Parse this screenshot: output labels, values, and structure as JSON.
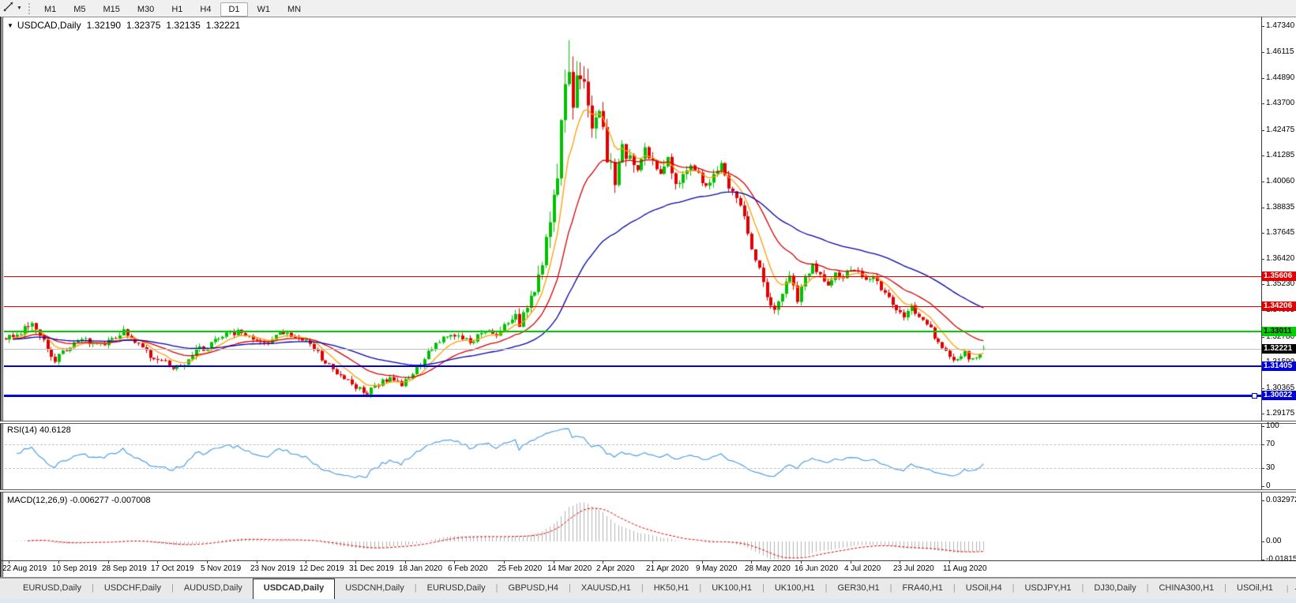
{
  "toolbar": {
    "tool_icon": "trendline-tool",
    "dropdown_icon": "▼",
    "timeframes": [
      {
        "label": "M1",
        "active": false
      },
      {
        "label": "M5",
        "active": false
      },
      {
        "label": "M15",
        "active": false
      },
      {
        "label": "M30",
        "active": false
      },
      {
        "label": "H1",
        "active": false
      },
      {
        "label": "H4",
        "active": false
      },
      {
        "label": "D1",
        "active": true
      },
      {
        "label": "W1",
        "active": false
      },
      {
        "label": "MN",
        "active": false
      }
    ]
  },
  "chart": {
    "title": {
      "expander_icon": "▼",
      "symbol_period": "USDCAD,Daily",
      "open": "1.32190",
      "high": "1.32375",
      "low": "1.32135",
      "close": "1.32221"
    },
    "colors": {
      "bull": "#00c000",
      "bear": "#e00000",
      "background": "#ffffff",
      "axis_text": "#000000",
      "current_price_line": "#c0c0c0"
    },
    "moving_averages": [
      {
        "period": 8,
        "color": "#ff9c00"
      },
      {
        "period": 21,
        "color": "#d40000"
      },
      {
        "period": 55,
        "color": "#0000a8"
      }
    ],
    "levels": [
      {
        "price": 1.35606,
        "label": "1.35606",
        "color": "#e00000",
        "text_color": "#ffffff",
        "thickness": 1
      },
      {
        "price": 1.34206,
        "label": "1.34206",
        "color": "#e00000",
        "text_color": "#ffffff",
        "thickness": 1
      },
      {
        "price": 1.33011,
        "label": "1.33011",
        "color": "#00d000",
        "text_color": "#000000",
        "thickness": 2
      },
      {
        "price": 1.31405,
        "label": "1.31405",
        "color": "#0000d8",
        "text_color": "#ffffff",
        "thickness": 2
      },
      {
        "price": 1.30022,
        "label": "1.30022",
        "color": "#0000d8",
        "text_color": "#ffffff",
        "thickness": 3,
        "handle": true
      }
    ],
    "current_price": {
      "value": 1.32221,
      "label": "1.32221",
      "badge_bg": "#000000",
      "text_color": "#ffffff"
    }
  },
  "rsi": {
    "label": "RSI(14) 40.6128",
    "period": 14,
    "value": 40.6128,
    "axis_labels": [
      "100",
      "70",
      "30",
      "0"
    ],
    "axis_values": [
      100,
      70,
      30,
      0
    ],
    "dashed_levels": [
      70,
      30
    ],
    "line_color": "#4c9ee8"
  },
  "macd": {
    "label": "MACD(12,26,9) -0.006277 -0.007008",
    "fast": 12,
    "slow": 26,
    "signal": 9,
    "main_value": "-0.006277",
    "signal_value": "-0.007008",
    "axis_labels": [
      "0.032972",
      "0.00",
      "-0.018154"
    ],
    "axis_values": [
      0.032972,
      0,
      -0.018154
    ],
    "hist_color": "#b2b2b2",
    "signal_color": "#e00000"
  },
  "tabs": {
    "items": [
      "EURUSD,Daily",
      "USDCHF,Daily",
      "AUDUSD,Daily",
      "USDCAD,Daily",
      "USDCNH,Daily",
      "EURUSD,Daily",
      "GBPUSD,H4",
      "XAUUSD,H1",
      "HK50,H1",
      "UK100,H1",
      "UK100,H1",
      "GER30,H1",
      "FRA40,H1",
      "USOil,H4",
      "USDJPY,H1",
      "DJ30,Daily",
      "CHINA300,H1",
      "USOil,H1"
    ],
    "active_index": 3,
    "scroll_left_icon": "◂",
    "scroll_right_icon": "▸"
  },
  "chart_data": {
    "type": "candlestick",
    "symbol": "USDCAD",
    "timeframe": "Daily",
    "title": "USDCAD,Daily",
    "bars_total": 258,
    "ylim": [
      1.29175,
      1.4734
    ],
    "y_ticks": [
      "1.47340",
      "1.46115",
      "1.44890",
      "1.43700",
      "1.42475",
      "1.41285",
      "1.40060",
      "1.38835",
      "1.37645",
      "1.36420",
      "1.35230",
      "1.34005",
      "1.32780",
      "1.31590",
      "1.30365",
      "1.29175"
    ],
    "x_labels": [
      "22 Aug 2019",
      "10 Sep 2019",
      "28 Sep 2019",
      "17 Oct 2019",
      "5 Nov 2019",
      "23 Nov 2019",
      "12 Dec 2019",
      "31 Dec 2019",
      "18 Jan 2020",
      "6 Feb 2020",
      "25 Feb 2020",
      "14 Mar 2020",
      "2 Apr 2020",
      "21 Apr 2020",
      "9 May 2020",
      "28 May 2020",
      "16 Jun 2020",
      "4 Jul 2020",
      "23 Jul 2020",
      "11 Aug 2020"
    ],
    "x_label_bar_interval": 13,
    "x_label_first_bar": 1,
    "last_candle": {
      "open": 1.3219,
      "high": 1.32375,
      "low": 1.32135,
      "close": 1.32221
    },
    "close_anchors": [
      [
        0,
        1.327,
        0.0035
      ],
      [
        4,
        1.33,
        0.0035
      ],
      [
        7,
        1.334,
        0.004
      ],
      [
        10,
        1.3255,
        0.004
      ],
      [
        13,
        1.317,
        0.0035
      ],
      [
        16,
        1.3215,
        0.003
      ],
      [
        20,
        1.327,
        0.003
      ],
      [
        24,
        1.3235,
        0.003
      ],
      [
        27,
        1.325,
        0.003
      ],
      [
        31,
        1.3305,
        0.0035
      ],
      [
        35,
        1.324,
        0.003
      ],
      [
        39,
        1.317,
        0.0035
      ],
      [
        43,
        1.3145,
        0.0035
      ],
      [
        46,
        1.3135,
        0.003
      ],
      [
        50,
        1.3215,
        0.0035
      ],
      [
        53,
        1.323,
        0.003
      ],
      [
        57,
        1.329,
        0.003
      ],
      [
        61,
        1.33,
        0.0028
      ],
      [
        64,
        1.327,
        0.0028
      ],
      [
        68,
        1.3245,
        0.0028
      ],
      [
        72,
        1.3295,
        0.0028
      ],
      [
        76,
        1.328,
        0.0025
      ],
      [
        79,
        1.3255,
        0.0025
      ],
      [
        83,
        1.318,
        0.003
      ],
      [
        86,
        1.313,
        0.003
      ],
      [
        89,
        1.308,
        0.003
      ],
      [
        92,
        1.3045,
        0.0032
      ],
      [
        95,
        1.301,
        0.0032
      ],
      [
        98,
        1.306,
        0.003
      ],
      [
        101,
        1.3085,
        0.0028
      ],
      [
        104,
        1.305,
        0.0028
      ],
      [
        107,
        1.3105,
        0.0028
      ],
      [
        110,
        1.318,
        0.003
      ],
      [
        113,
        1.3245,
        0.003
      ],
      [
        116,
        1.328,
        0.0028
      ],
      [
        119,
        1.329,
        0.0028
      ],
      [
        122,
        1.325,
        0.0028
      ],
      [
        125,
        1.33,
        0.0028
      ],
      [
        127,
        1.332,
        0.003
      ],
      [
        129,
        1.328,
        0.0035
      ],
      [
        131,
        1.333,
        0.0045
      ],
      [
        133,
        1.338,
        0.005
      ],
      [
        135,
        1.3345,
        0.0055
      ],
      [
        137,
        1.34,
        0.006
      ],
      [
        139,
        1.35,
        0.007
      ],
      [
        141,
        1.362,
        0.009
      ],
      [
        143,
        1.379,
        0.011
      ],
      [
        145,
        1.405,
        0.013
      ],
      [
        147,
        1.448,
        0.015
      ],
      [
        148,
        1.452,
        0.016
      ],
      [
        149,
        1.44,
        0.014
      ],
      [
        150,
        1.453,
        0.013
      ],
      [
        152,
        1.442,
        0.012
      ],
      [
        154,
        1.428,
        0.011
      ],
      [
        156,
        1.438,
        0.01
      ],
      [
        158,
        1.41,
        0.009
      ],
      [
        160,
        1.402,
        0.008
      ],
      [
        162,
        1.415,
        0.0075
      ],
      [
        164,
        1.413,
        0.007
      ],
      [
        166,
        1.408,
        0.0065
      ],
      [
        168,
        1.417,
        0.006
      ],
      [
        170,
        1.409,
        0.006
      ],
      [
        172,
        1.402,
        0.006
      ],
      [
        174,
        1.41,
        0.0055
      ],
      [
        176,
        1.399,
        0.0055
      ],
      [
        178,
        1.404,
        0.005
      ],
      [
        180,
        1.408,
        0.005
      ],
      [
        182,
        1.403,
        0.005
      ],
      [
        184,
        1.398,
        0.005
      ],
      [
        186,
        1.405,
        0.005
      ],
      [
        188,
        1.41,
        0.0048
      ],
      [
        190,
        1.398,
        0.0048
      ],
      [
        192,
        1.393,
        0.0045
      ],
      [
        194,
        1.383,
        0.0045
      ],
      [
        196,
        1.37,
        0.0045
      ],
      [
        198,
        1.36,
        0.0045
      ],
      [
        200,
        1.348,
        0.0045
      ],
      [
        202,
        1.339,
        0.0045
      ],
      [
        204,
        1.348,
        0.0045
      ],
      [
        206,
        1.356,
        0.0042
      ],
      [
        208,
        1.344,
        0.0042
      ],
      [
        210,
        1.355,
        0.004
      ],
      [
        212,
        1.362,
        0.004
      ],
      [
        214,
        1.356,
        0.0038
      ],
      [
        216,
        1.353,
        0.0038
      ],
      [
        218,
        1.3575,
        0.0036
      ],
      [
        220,
        1.3545,
        0.0036
      ],
      [
        222,
        1.36,
        0.0035
      ],
      [
        224,
        1.358,
        0.0034
      ],
      [
        226,
        1.3545,
        0.0034
      ],
      [
        228,
        1.357,
        0.0033
      ],
      [
        230,
        1.351,
        0.0033
      ],
      [
        232,
        1.345,
        0.0033
      ],
      [
        234,
        1.34,
        0.0033
      ],
      [
        236,
        1.338,
        0.0032
      ],
      [
        238,
        1.3415,
        0.0032
      ],
      [
        240,
        1.3375,
        0.0032
      ],
      [
        242,
        1.334,
        0.0032
      ],
      [
        244,
        1.328,
        0.0032
      ],
      [
        246,
        1.323,
        0.0032
      ],
      [
        248,
        1.319,
        0.0032
      ],
      [
        250,
        1.3165,
        0.003
      ],
      [
        252,
        1.32,
        0.003
      ],
      [
        254,
        1.3165,
        0.003
      ],
      [
        256,
        1.3185,
        0.003
      ],
      [
        257,
        1.3222,
        0.0025
      ]
    ],
    "overrides": [
      {
        "bar": 148,
        "high": 1.4668
      },
      {
        "bar": 150,
        "high": 1.456
      },
      {
        "bar": 95,
        "low": 1.2995
      }
    ]
  }
}
